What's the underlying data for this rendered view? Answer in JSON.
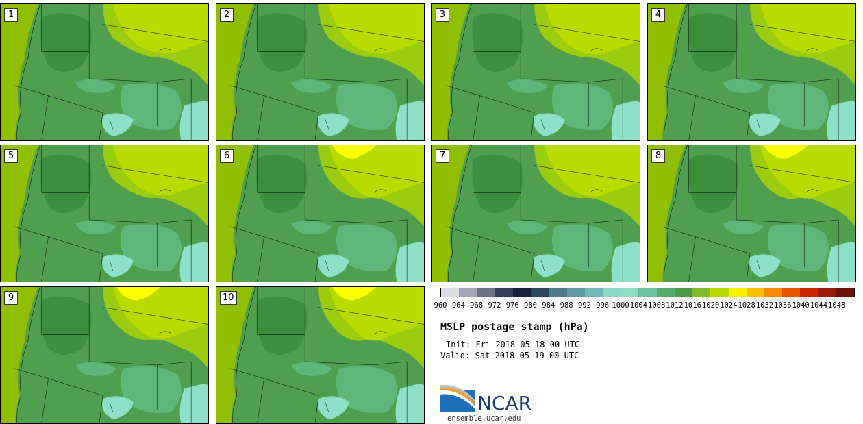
{
  "panels": [
    {
      "number": "1"
    },
    {
      "number": "2"
    },
    {
      "number": "3"
    },
    {
      "number": "4"
    },
    {
      "number": "5"
    },
    {
      "number": "6"
    },
    {
      "number": "7"
    },
    {
      "number": "8"
    },
    {
      "number": "9"
    },
    {
      "number": "10"
    }
  ],
  "colorbar": {
    "labels": [
      "960",
      "964",
      "968",
      "972",
      "976",
      "980",
      "984",
      "988",
      "992",
      "996",
      "1000",
      "1004",
      "1008",
      "1012",
      "1016",
      "1020",
      "1024",
      "1028",
      "1032",
      "1036",
      "1040",
      "1044",
      "1048"
    ],
    "colors": [
      "#dcdde2",
      "#a3a5b8",
      "#6c7086",
      "#2f3b58",
      "#18213a",
      "#2c4660",
      "#4d7a8a",
      "#5f9aa3",
      "#74b8b6",
      "#8ed8c8",
      "#8edcc4",
      "#6cc29c",
      "#54ab6d",
      "#4b9b46",
      "#82b92a",
      "#b8d800",
      "#f4f400",
      "#f8c000",
      "#f68a00",
      "#e85400",
      "#c82800",
      "#9a1a0c",
      "#6a1408"
    ]
  },
  "map_colors": {
    "water": "#8fbf00",
    "lowland": "#4f9f4f",
    "mountain": "#3d8e3d",
    "plains_yellow": "#b8dc00",
    "plains_light": "#9ccc10",
    "basin": "#5fb77a",
    "deep_basin": "#8fe0c8",
    "high": "#ffff00"
  },
  "title": "MSLP postage stamp (hPa)",
  "init_text": "Init: Fri 2018-05-18 00 UTC",
  "valid_text": "Valid: Sat 2018-05-19 00 UTC",
  "logo": {
    "name": "NCAR",
    "url": "ensemble.ucar.edu"
  }
}
